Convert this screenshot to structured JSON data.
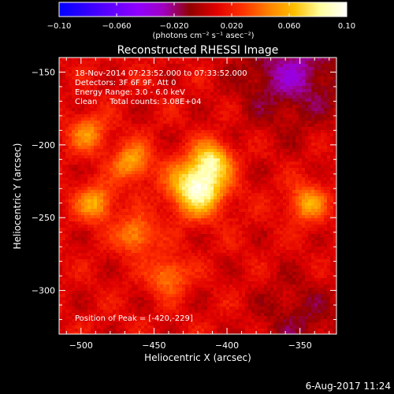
{
  "chart_data": {
    "type": "heatmap",
    "title": "Reconstructed RHESSI Image",
    "xlabel": "Heliocentric X (arcsec)",
    "ylabel": "Heliocentric Y (arcsec)",
    "xlim": [
      -515,
      -325
    ],
    "ylim": [
      -330,
      -140
    ],
    "x_ticks": [
      -500,
      -450,
      -400,
      -350
    ],
    "y_ticks": [
      -300,
      -250,
      -200,
      -150
    ],
    "x_tick_labels": [
      "−500",
      "−450",
      "−400",
      "−350"
    ],
    "y_tick_labels": [
      "−300",
      "−250",
      "−200",
      "−150"
    ],
    "colorbar": {
      "range": [
        -0.1,
        0.1
      ],
      "ticks": [
        -0.1,
        -0.06,
        -0.02,
        0.02,
        0.06,
        0.1
      ],
      "tick_labels": [
        "−0.10",
        "−0.060",
        "−0.020",
        "0.020",
        "0.060",
        "0.10"
      ],
      "units_label": "(photons cm⁻² s⁻¹ asec⁻²)",
      "colormap": [
        "#0000ff",
        "#3000ff",
        "#6000ff",
        "#9000ff",
        "#a000c0",
        "#900000",
        "#e00000",
        "#ff3000",
        "#ff8000",
        "#ffc000",
        "#ffffa0",
        "#ffffff"
      ]
    },
    "annotations": [
      "18-Nov-2014 07:23:52.000 to 07:33:52.000",
      "Detectors: 3F 6F 9F, Att 0",
      "Energy Range: 3.0 - 6.0 keV",
      "Clean     Total counts: 3.08E+04"
    ],
    "peak_label": "Position of Peak = [-420,-229]",
    "peak": {
      "x": -420,
      "y": -229,
      "value": 0.1
    },
    "sources": [
      {
        "x": -420,
        "y": -229,
        "value": 0.1
      },
      {
        "x": -410,
        "y": -210,
        "value": 0.06
      },
      {
        "x": -465,
        "y": -212,
        "value": 0.055
      },
      {
        "x": -490,
        "y": -240,
        "value": 0.055
      },
      {
        "x": -462,
        "y": -262,
        "value": 0.05
      },
      {
        "x": -345,
        "y": -240,
        "value": 0.052
      },
      {
        "x": -495,
        "y": -192,
        "value": 0.045
      },
      {
        "x": -440,
        "y": -290,
        "value": 0.045
      }
    ],
    "grid": false
  },
  "footer_date": "6-Aug-2017 11:24"
}
